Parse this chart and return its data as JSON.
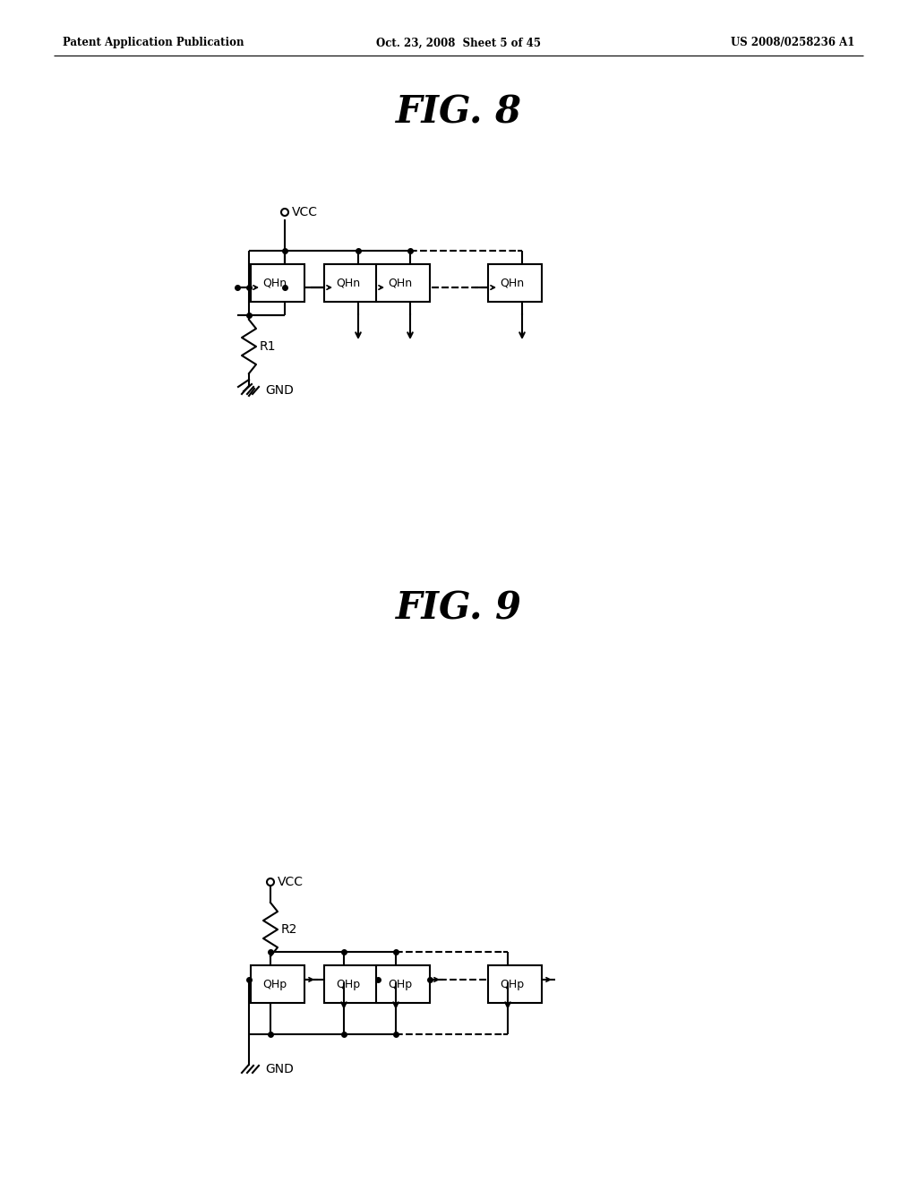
{
  "fig_width": 10.24,
  "fig_height": 13.2,
  "bg_color": "#ffffff",
  "header_left": "Patent Application Publication",
  "header_center": "Oct. 23, 2008  Sheet 5 of 45",
  "header_right": "US 2008/0258236 A1",
  "fig8_title": "FIG. 8",
  "fig9_title": "FIG. 9",
  "lw": 1.5
}
